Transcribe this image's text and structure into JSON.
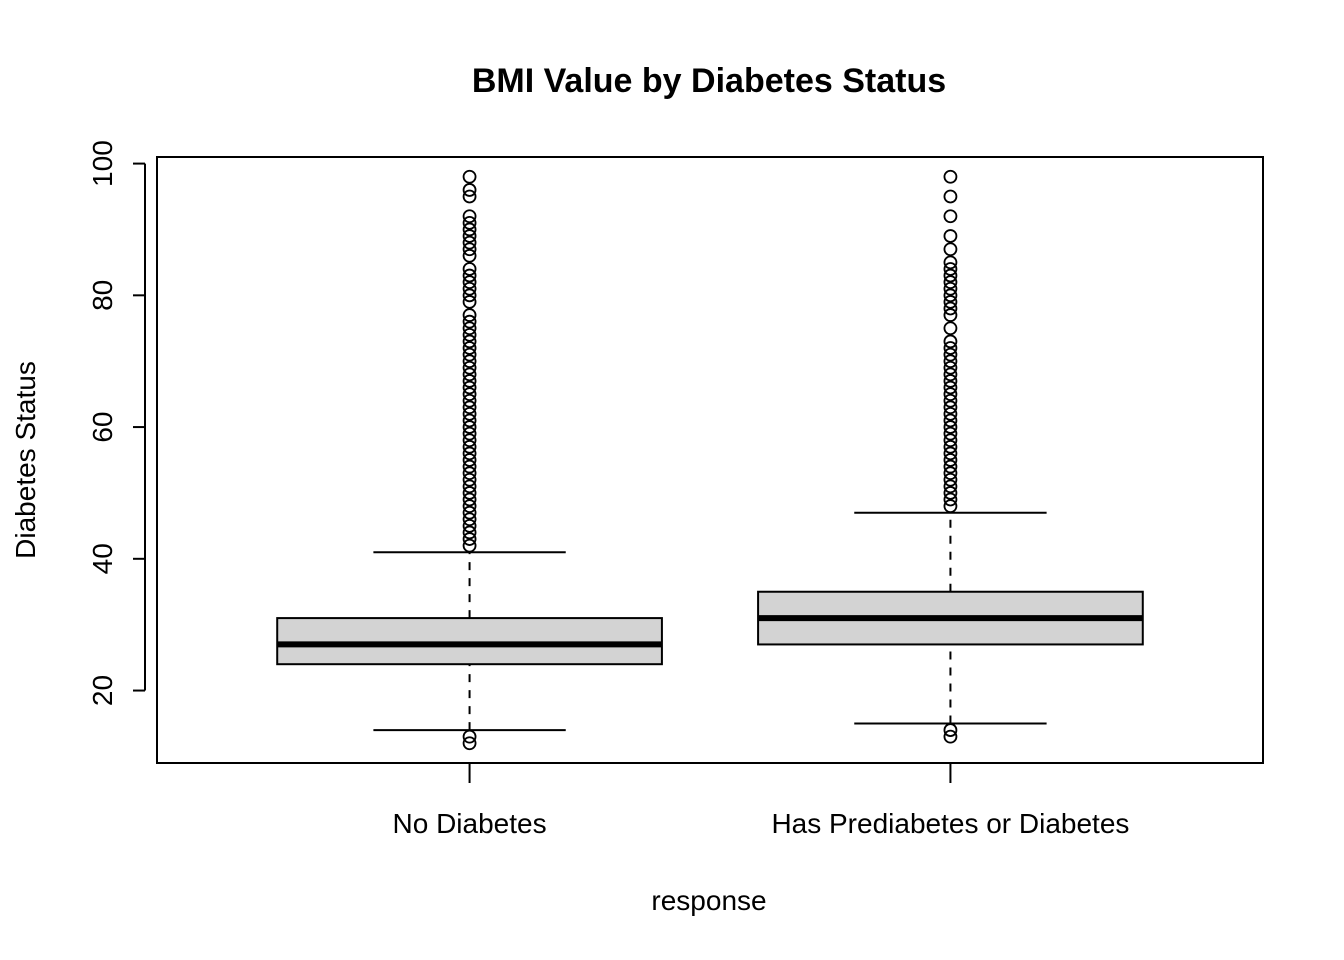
{
  "chart_data": {
    "type": "boxplot",
    "title": "BMI Value by Diabetes Status",
    "xlabel": "response",
    "ylabel": "Diabetes Status",
    "categories": [
      "No Diabetes",
      "Has Prediabetes or Diabetes"
    ],
    "ylim": [
      9,
      101
    ],
    "yticks": [
      20,
      40,
      60,
      80,
      100
    ],
    "grid": false,
    "legend": "none",
    "box_fill": "#d3d3d3",
    "line_color": "#000000",
    "boxes": [
      {
        "name": "No Diabetes",
        "whisker_low": 14,
        "q1": 24,
        "median": 27,
        "q3": 31,
        "whisker_high": 41,
        "outliers": [
          12,
          13,
          42,
          43,
          44,
          45,
          46,
          47,
          48,
          49,
          50,
          51,
          52,
          53,
          54,
          55,
          56,
          57,
          58,
          59,
          60,
          61,
          62,
          63,
          64,
          65,
          66,
          67,
          68,
          69,
          70,
          71,
          72,
          73,
          74,
          75,
          76,
          77,
          79,
          80,
          81,
          82,
          83,
          84,
          86,
          87,
          88,
          89,
          90,
          91,
          92,
          95,
          96,
          98
        ]
      },
      {
        "name": "Has Prediabetes or Diabetes",
        "whisker_low": 15,
        "q1": 27,
        "median": 31,
        "q3": 35,
        "whisker_high": 47,
        "outliers": [
          13,
          14,
          48,
          49,
          50,
          51,
          52,
          53,
          54,
          55,
          56,
          57,
          58,
          59,
          60,
          61,
          62,
          63,
          64,
          65,
          66,
          67,
          68,
          69,
          70,
          71,
          72,
          73,
          75,
          77,
          78,
          79,
          80,
          81,
          82,
          83,
          84,
          85,
          87,
          89,
          92,
          95,
          98
        ]
      }
    ]
  }
}
